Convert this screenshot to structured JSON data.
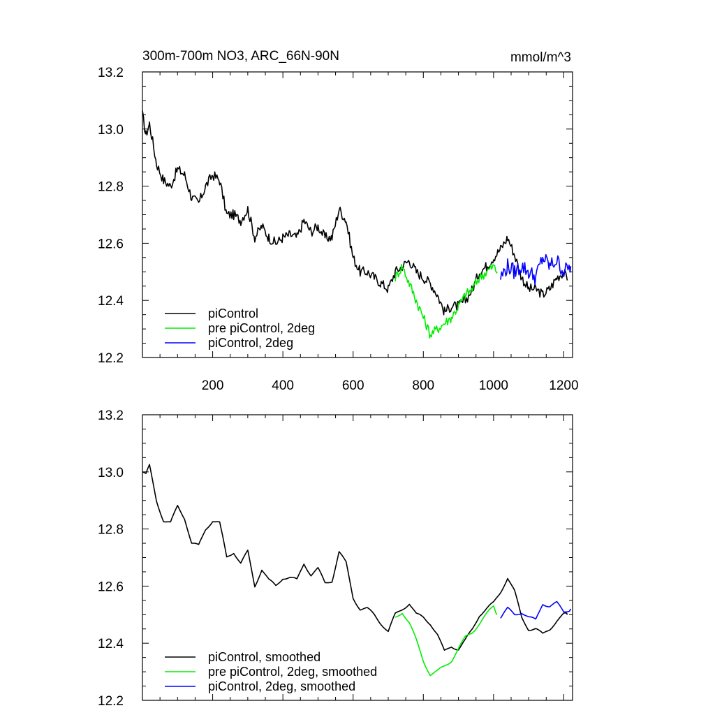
{
  "figure": {
    "title": "300m-700m NO3, ARC_66N-90N",
    "units": "mmol/m^3"
  },
  "colors": {
    "black": "#000000",
    "green": "#00ee00",
    "blue": "#0000ff"
  },
  "chart_data": [
    {
      "type": "line",
      "panel": "top",
      "title": "300m-700m NO3, ARC_66N-90N",
      "units_label": "mmol/m^3",
      "xlim": [
        0,
        1225
      ],
      "ylim": [
        12.2,
        13.2
      ],
      "x_ticks": [
        200,
        400,
        600,
        800,
        1000,
        1200
      ],
      "x_tick_labels": [
        "200",
        "400",
        "600",
        "800",
        "1000",
        "1200"
      ],
      "y_ticks": [
        12.2,
        12.4,
        12.6,
        12.8,
        13.0,
        13.2
      ],
      "y_tick_labels": [
        "12.2",
        "12.4",
        "12.6",
        "12.8",
        "13.0",
        "13.2"
      ],
      "grid": false,
      "legend_position": "bottom-left",
      "series": [
        {
          "name": "piControl",
          "color": "#000000",
          "noise": 0.018,
          "x": [
            0,
            10,
            20,
            40,
            60,
            80,
            100,
            120,
            140,
            160,
            180,
            200,
            220,
            240,
            260,
            280,
            300,
            320,
            340,
            360,
            380,
            400,
            420,
            440,
            460,
            480,
            500,
            520,
            540,
            560,
            580,
            600,
            620,
            640,
            660,
            680,
            700,
            720,
            740,
            760,
            780,
            800,
            820,
            840,
            860,
            880,
            900,
            920,
            940,
            960,
            980,
            1000,
            1020,
            1040,
            1060,
            1080,
            1100,
            1120,
            1140,
            1160,
            1180,
            1200,
            1210
          ],
          "y": [
            13.05,
            12.98,
            13.02,
            12.88,
            12.82,
            12.8,
            12.86,
            12.84,
            12.76,
            12.74,
            12.8,
            12.84,
            12.82,
            12.7,
            12.7,
            12.68,
            12.72,
            12.62,
            12.66,
            12.62,
            12.6,
            12.62,
            12.63,
            12.62,
            12.68,
            12.64,
            12.66,
            12.62,
            12.62,
            12.72,
            12.68,
            12.55,
            12.5,
            12.5,
            12.48,
            12.46,
            12.44,
            12.5,
            12.52,
            12.54,
            12.5,
            12.48,
            12.46,
            12.42,
            12.36,
            12.38,
            12.38,
            12.4,
            12.44,
            12.5,
            12.52,
            12.55,
            12.58,
            12.62,
            12.56,
            12.48,
            12.44,
            12.44,
            12.42,
            12.44,
            12.48,
            12.5,
            12.47
          ]
        },
        {
          "name": "pre piControl, 2deg",
          "color": "#00ee00",
          "noise": 0.018,
          "x": [
            720,
            740,
            760,
            780,
            800,
            820,
            840,
            860,
            880,
            900,
            920,
            940,
            960,
            980,
            1000,
            1010
          ],
          "y": [
            12.48,
            12.52,
            12.46,
            12.4,
            12.34,
            12.28,
            12.3,
            12.32,
            12.34,
            12.38,
            12.42,
            12.44,
            12.48,
            12.5,
            12.52,
            12.5
          ]
        },
        {
          "name": "piControl, 2deg",
          "color": "#0000ff",
          "noise": 0.028,
          "x": [
            1020,
            1040,
            1060,
            1080,
            1100,
            1120,
            1140,
            1160,
            1180,
            1200,
            1220
          ],
          "y": [
            12.48,
            12.52,
            12.5,
            12.52,
            12.5,
            12.48,
            12.55,
            12.52,
            12.54,
            12.5,
            12.52
          ]
        }
      ]
    },
    {
      "type": "line",
      "panel": "bottom",
      "xlim": [
        0,
        1225
      ],
      "ylim": [
        12.2,
        13.2
      ],
      "x_ticks": [
        200,
        400,
        600,
        800,
        1000,
        1200
      ],
      "y_ticks": [
        12.2,
        12.4,
        12.6,
        12.8,
        13.0,
        13.2
      ],
      "y_tick_labels": [
        "12.2",
        "12.4",
        "12.6",
        "12.8",
        "13.0",
        "13.2"
      ],
      "grid": false,
      "legend_position": "bottom-left",
      "series": [
        {
          "name": "piControl, smoothed",
          "color": "#000000",
          "x": [
            0,
            10,
            20,
            40,
            60,
            80,
            100,
            120,
            140,
            160,
            180,
            200,
            220,
            240,
            260,
            280,
            300,
            320,
            340,
            360,
            380,
            400,
            420,
            440,
            460,
            480,
            500,
            520,
            540,
            560,
            580,
            600,
            620,
            640,
            660,
            680,
            700,
            720,
            740,
            760,
            780,
            800,
            820,
            840,
            860,
            880,
            900,
            920,
            940,
            960,
            980,
            1000,
            1020,
            1040,
            1060,
            1080,
            1100,
            1120,
            1140,
            1160,
            1180,
            1200,
            1210
          ],
          "y": [
            13.0,
            12.99,
            13.02,
            12.9,
            12.83,
            12.82,
            12.88,
            12.84,
            12.75,
            12.74,
            12.8,
            12.83,
            12.82,
            12.7,
            12.72,
            12.68,
            12.72,
            12.6,
            12.66,
            12.62,
            12.6,
            12.63,
            12.63,
            12.62,
            12.68,
            12.64,
            12.66,
            12.61,
            12.62,
            12.72,
            12.68,
            12.56,
            12.52,
            12.52,
            12.5,
            12.47,
            12.44,
            12.5,
            12.52,
            12.54,
            12.5,
            12.49,
            12.47,
            12.43,
            12.37,
            12.39,
            12.38,
            12.41,
            12.45,
            12.5,
            12.52,
            12.54,
            12.58,
            12.63,
            12.58,
            12.49,
            12.45,
            12.45,
            12.43,
            12.45,
            12.48,
            12.5,
            12.5
          ]
        },
        {
          "name": "pre piControl, 2deg, smoothed",
          "color": "#00ee00",
          "x": [
            720,
            740,
            760,
            780,
            800,
            820,
            840,
            860,
            880,
            900,
            920,
            940,
            960,
            980,
            1000,
            1010
          ],
          "y": [
            12.49,
            12.51,
            12.47,
            12.41,
            12.34,
            12.29,
            12.3,
            12.32,
            12.34,
            12.38,
            12.42,
            12.44,
            12.47,
            12.5,
            12.53,
            12.5
          ]
        },
        {
          "name": "piControl, 2deg, smoothed",
          "color": "#0000ff",
          "x": [
            1020,
            1040,
            1060,
            1080,
            1100,
            1120,
            1140,
            1160,
            1180,
            1200,
            1220
          ],
          "y": [
            12.49,
            12.52,
            12.5,
            12.51,
            12.49,
            12.48,
            12.54,
            12.53,
            12.54,
            12.51,
            12.52
          ]
        }
      ]
    }
  ]
}
